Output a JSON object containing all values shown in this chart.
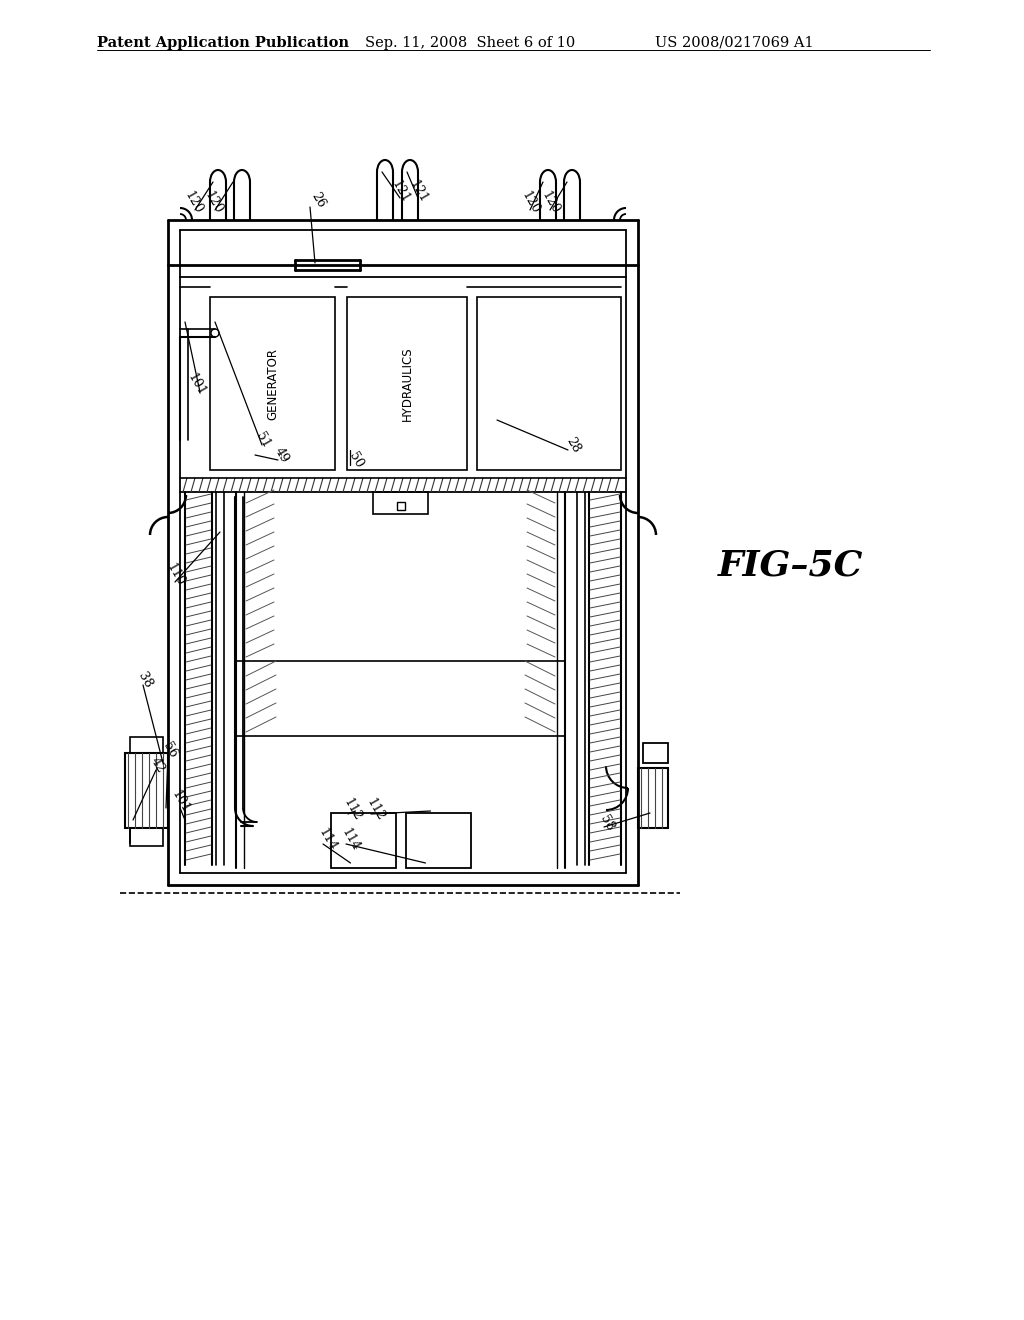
{
  "bg_color": "#ffffff",
  "header_left": "Patent Application Publication",
  "header_mid": "Sep. 11, 2008  Sheet 6 of 10",
  "header_right": "US 2008/0217069 A1",
  "fig_label": "FIG–5C",
  "header_fontsize": 10.5,
  "fig_label_fontsize": 26,
  "ann_fontsize": 9,
  "label_fontsize": 8.5
}
